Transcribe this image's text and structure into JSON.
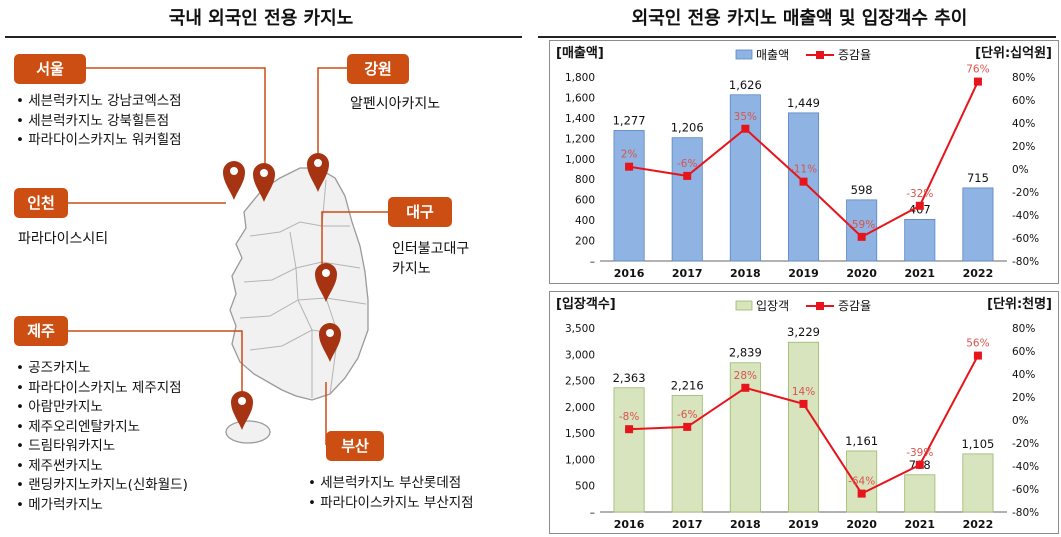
{
  "titles": {
    "left": "국내 외국인 전용 카지노",
    "right": "외국인 전용 카지노 매출액 및 입장객수 추이"
  },
  "regions": {
    "seoul": {
      "name": "서울",
      "casinos": [
        "세븐럭카지노 강남코엑스점",
        "세븐럭카지노 강북힐튼점",
        "파라다이스카지노 워커힐점"
      ]
    },
    "gangwon": {
      "name": "강원",
      "casinos": [
        "알펜시아카지노"
      ]
    },
    "incheon": {
      "name": "인천",
      "casinos": [
        "파라다이스시티"
      ]
    },
    "daegu": {
      "name": "대구",
      "casinos": [
        "인터불고대구\n카지노"
      ]
    },
    "jeju": {
      "name": "제주",
      "casinos": [
        "공즈카지노",
        "파라다이스카지노 제주지점",
        "아람만카지노",
        "제주오리엔탈카지노",
        "드림타워카지노",
        "제주썬카지노",
        "랜딩카지노카지노(신화월드)",
        "메가럭카지노"
      ]
    },
    "busan": {
      "name": "부산",
      "casinos": [
        "세븐럭카지노 부산롯데점",
        "파라다이스카지노 부산지점"
      ]
    }
  },
  "colors": {
    "badge": "#cc4e12",
    "pin": "#a63413",
    "bar_sales": "#8fb4e3",
    "bar_sales_edge": "#5a86c4",
    "bar_visitors": "#d7e4bd",
    "bar_visitors_edge": "#9bb86a",
    "line": "#e8141c",
    "line_label": "#d9534f"
  },
  "chart_data": [
    {
      "type": "bar",
      "corner_label": "[매출액]",
      "unit_label": "[단위:십억원]",
      "categories": [
        "2016",
        "2017",
        "2018",
        "2019",
        "2020",
        "2021",
        "2022"
      ],
      "series": [
        {
          "name": "매출액",
          "type": "bar",
          "axis": "left",
          "values": [
            1277,
            1206,
            1626,
            1449,
            598,
            407,
            715
          ],
          "labels": [
            "1,277",
            "1,206",
            "1,626",
            "1,449",
            "598",
            "407",
            "715"
          ]
        },
        {
          "name": "증감율",
          "type": "line",
          "axis": "right",
          "values": [
            2,
            -6,
            35,
            -11,
            -59,
            -32,
            76
          ],
          "labels": [
            "2%",
            "-6%",
            "35%",
            "-11%",
            "-59%",
            "-32%",
            "76%"
          ]
        }
      ],
      "ylim_left": [
        0,
        1800
      ],
      "yticks_left": [
        "–",
        "200",
        "400",
        "600",
        "800",
        "1,000",
        "1,200",
        "1,400",
        "1,600",
        "1,800"
      ],
      "ylim_right": [
        -80,
        80
      ],
      "yticks_right": [
        "-80%",
        "-60%",
        "-40%",
        "-20%",
        "0%",
        "20%",
        "40%",
        "60%",
        "80%"
      ],
      "legend": "top-center",
      "grid": false
    },
    {
      "type": "bar",
      "corner_label": "[입장객수]",
      "unit_label": "[단위:천명]",
      "categories": [
        "2016",
        "2017",
        "2018",
        "2019",
        "2020",
        "2021",
        "2022"
      ],
      "series": [
        {
          "name": "입장객",
          "type": "bar",
          "axis": "left",
          "values": [
            2363,
            2216,
            2839,
            3229,
            1161,
            708,
            1105
          ],
          "labels": [
            "2,363",
            "2,216",
            "2,839",
            "3,229",
            "1,161",
            "708",
            "1,105"
          ]
        },
        {
          "name": "증감율",
          "type": "line",
          "axis": "right",
          "values": [
            -8,
            -6,
            28,
            14,
            -64,
            -39,
            56
          ],
          "labels": [
            "-8%",
            "-6%",
            "28%",
            "14%",
            "-64%",
            "-39%",
            "56%"
          ]
        }
      ],
      "ylim_left": [
        0,
        3500
      ],
      "yticks_left": [
        "–",
        "500",
        "1,000",
        "1,500",
        "2,000",
        "2,500",
        "3,000",
        "3,500"
      ],
      "ylim_right": [
        -80,
        80
      ],
      "yticks_right": [
        "-80%",
        "-60%",
        "-40%",
        "-20%",
        "0%",
        "20%",
        "40%",
        "60%",
        "80%"
      ],
      "legend": "top-center",
      "grid": false
    }
  ]
}
